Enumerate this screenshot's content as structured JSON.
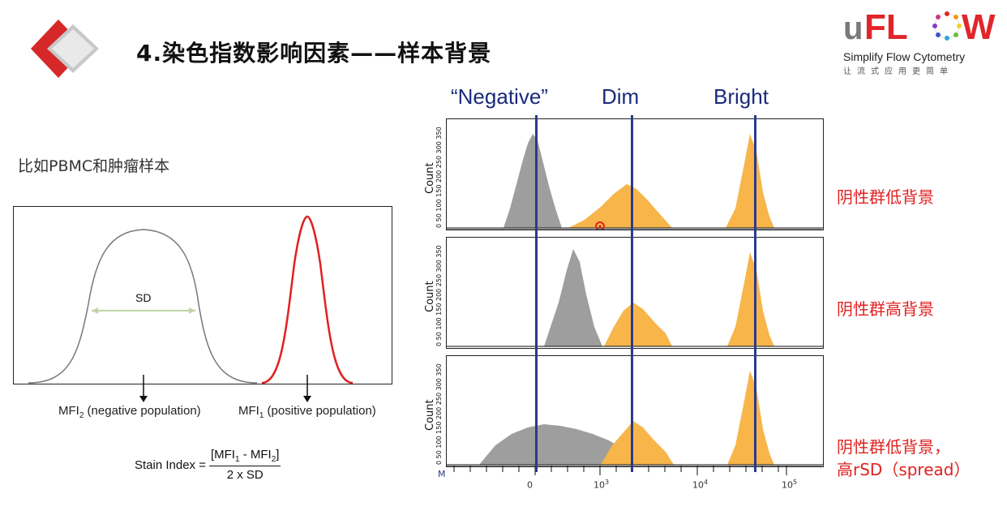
{
  "header": {
    "title": "4.染色指数影响因素——样本背景"
  },
  "logo": {
    "brand_u": "u",
    "brand_rest": "FL",
    "brand_w": "W",
    "tagline": "Simplify Flow Cytometry",
    "tagline_cn": "让流式应用更简单"
  },
  "left": {
    "subtitle": "比如PBMC和肿瘤样本",
    "sd_label": "SD",
    "mfi2_label": "MFI",
    "mfi2_sub": "2",
    "mfi2_suffix": " (negative population)",
    "mfi1_label": "MFI",
    "mfi1_sub": "1",
    "mfi1_suffix": " (positive population)",
    "formula_prefix": "Stain Index = ",
    "formula_num": "[MFI",
    "formula_num_sub1": "1",
    "formula_num_mid": " - MFI",
    "formula_num_sub2": "2",
    "formula_num_end": "]",
    "formula_den": "2 x SD"
  },
  "right": {
    "col_negative": "“Negative”",
    "col_dim": "Dim",
    "col_bright": "Bright",
    "count_label": "Count",
    "y_ticks": "0 50 100 150 200 250 300 350",
    "row_labels": [
      "阴性群低背景",
      "阴性群高背景",
      "阴性群低背景，",
      "高rSD（spread）"
    ],
    "x_ticks": [
      "0",
      "10",
      "10",
      "10"
    ],
    "x_exps": [
      "",
      "3",
      "4",
      "5"
    ],
    "m_label": "M"
  },
  "colors": {
    "accent_red": "#e02020",
    "navy": "#1a2a7a",
    "gray_hist": "#9e9e9e",
    "orange_hist": "#f7b54a"
  }
}
